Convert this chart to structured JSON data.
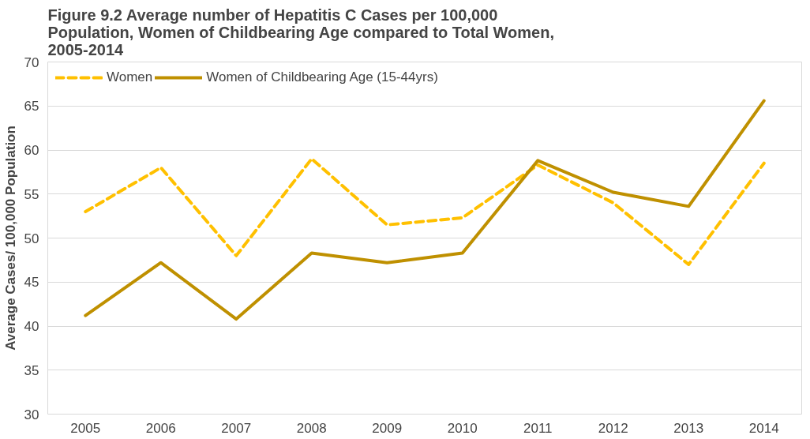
{
  "chart_data": {
    "type": "line",
    "title": "Figure 9.2 Average number of Hepatitis C Cases per 100,000 Population, Women of Childbearing Age compared to Total Women, 2005-2014",
    "ylabel": "Average Cases/ 100,000 Population",
    "categories": [
      "2005",
      "2006",
      "2007",
      "2008",
      "2009",
      "2010",
      "2011",
      "2012",
      "2013",
      "2014"
    ],
    "series": [
      {
        "name": "Women",
        "color": "#ffc000",
        "line_style": "dashed",
        "values": [
          53,
          58,
          48,
          59,
          51.5,
          52.3,
          58.3,
          54,
          47,
          58.5
        ]
      },
      {
        "name": "Women of Childbearing Age (15-44yrs)",
        "color": "#bf9000",
        "line_style": "solid",
        "values": [
          41.2,
          47.2,
          40.8,
          48.3,
          47.2,
          48.3,
          58.8,
          55.2,
          53.6,
          65.6
        ]
      }
    ],
    "ylim": [
      30,
      70
    ],
    "yticks": [
      30,
      35,
      40,
      45,
      50,
      55,
      60,
      65,
      70
    ],
    "grid": "y",
    "legend": "top left",
    "marker": "none"
  }
}
